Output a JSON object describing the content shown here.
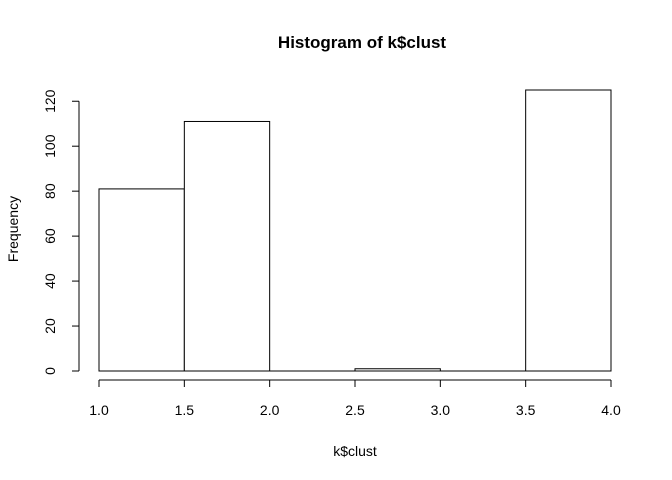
{
  "chart_data": {
    "type": "bar",
    "title": "Histogram of k$clust",
    "xlabel": "k$clust",
    "ylabel": "Frequency",
    "bins": [
      {
        "start": 1.0,
        "end": 1.5,
        "count": 81
      },
      {
        "start": 1.5,
        "end": 2.0,
        "count": 111
      },
      {
        "start": 2.0,
        "end": 2.5,
        "count": 0
      },
      {
        "start": 2.5,
        "end": 3.0,
        "count": 1
      },
      {
        "start": 3.0,
        "end": 3.5,
        "count": 0
      },
      {
        "start": 3.5,
        "end": 4.0,
        "count": 125
      }
    ],
    "xlim": [
      1.0,
      4.0
    ],
    "ylim": [
      0,
      125
    ],
    "x_ticks": [
      "1.0",
      "1.5",
      "2.0",
      "2.5",
      "3.0",
      "3.5",
      "4.0"
    ],
    "y_ticks": [
      "0",
      "20",
      "40",
      "60",
      "80",
      "100",
      "120"
    ],
    "grid": false,
    "legend": "none"
  }
}
